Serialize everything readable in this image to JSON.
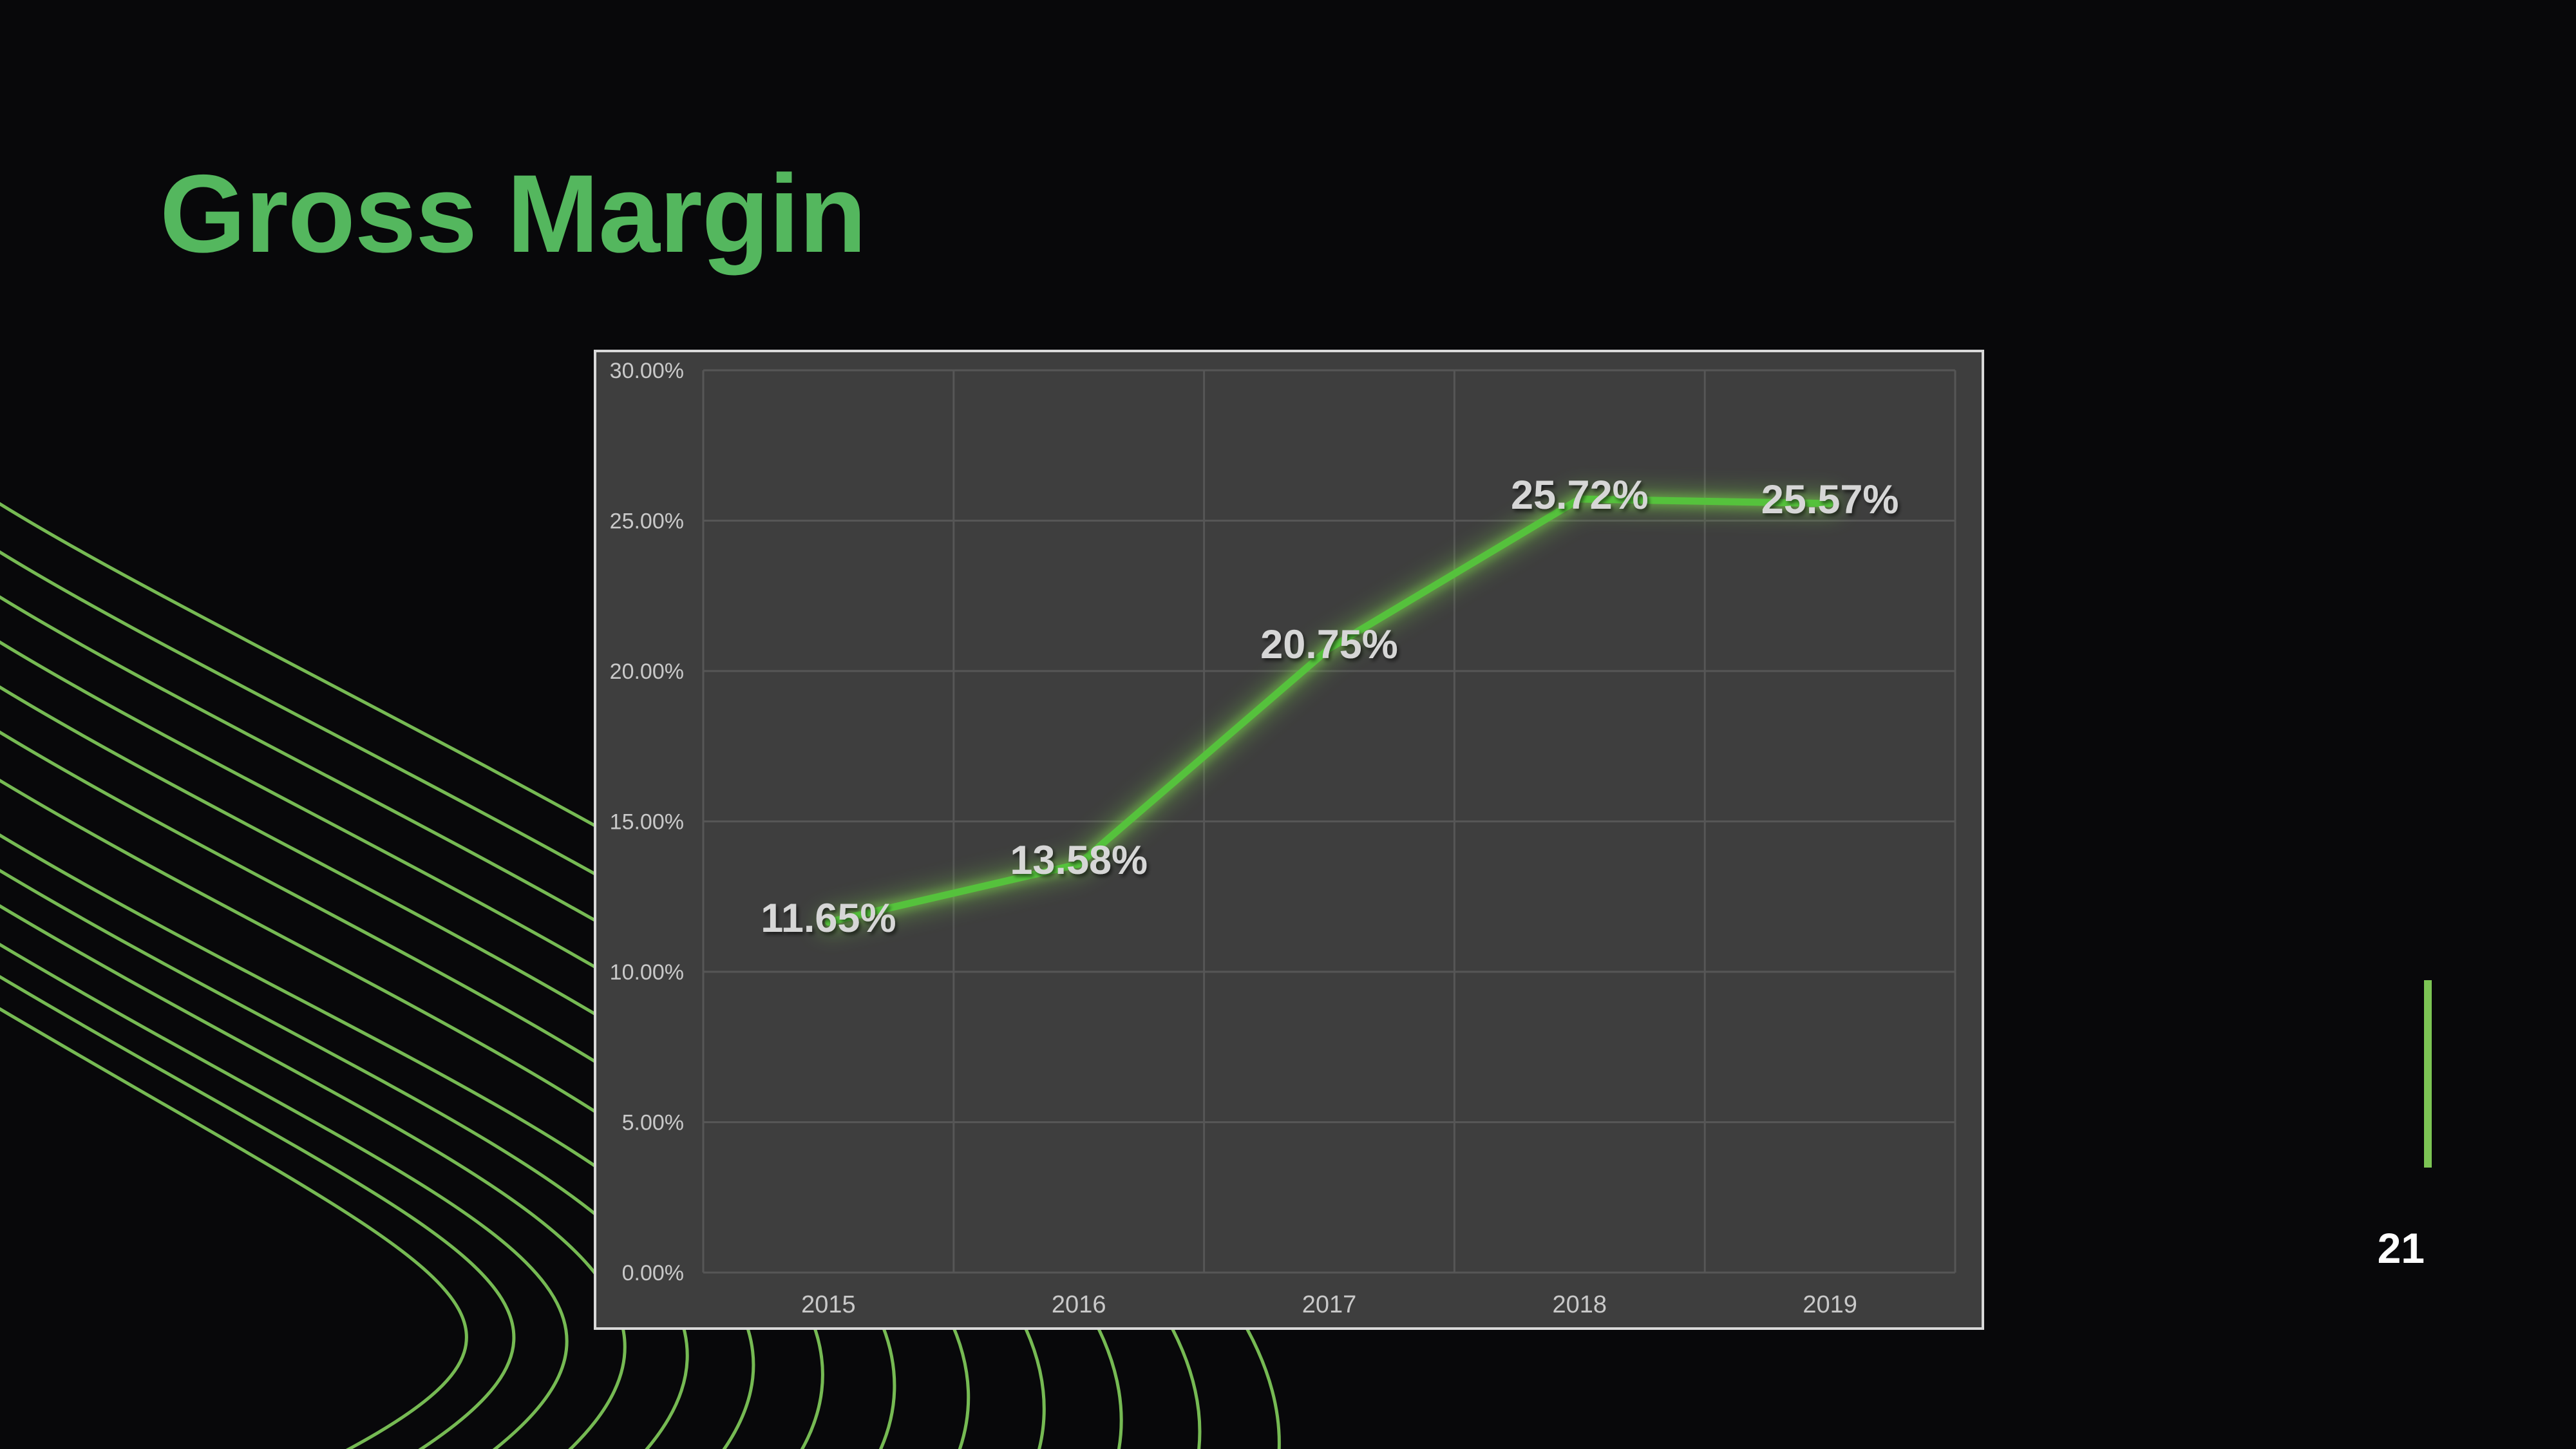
{
  "slide": {
    "title": "Gross Margin",
    "page_number": "21",
    "background_color": "#08080a",
    "title_color": "#54b75e",
    "deco_line_color": "#7cc457",
    "marker_bar_color": "#7cc454",
    "page_number_color": "#ffffff"
  },
  "chart_data": {
    "type": "line",
    "title": "",
    "xlabel": "",
    "ylabel": "",
    "categories": [
      "2015",
      "2016",
      "2017",
      "2018",
      "2019"
    ],
    "values": [
      11.65,
      13.58,
      20.75,
      25.72,
      25.57
    ],
    "point_labels": [
      "11.65%",
      "13.58%",
      "20.75%",
      "25.72%",
      "25.57%"
    ],
    "ylim": [
      0,
      30
    ],
    "y_step": 5,
    "ytick_labels": [
      "0.00%",
      "5.00%",
      "10.00%",
      "15.00%",
      "20.00%",
      "25.00%",
      "30.00%"
    ],
    "grid": true,
    "legend": false,
    "legend_position": "none",
    "panel_bg": "#3e3e3e",
    "panel_border_color": "#d9d9d9",
    "gridline_color": "#565656",
    "axis_text_color": "#c9c9c9",
    "data_label_color": "#d6d6d6",
    "line_color": "#55c23c",
    "glow_color": "#7ac84e"
  }
}
